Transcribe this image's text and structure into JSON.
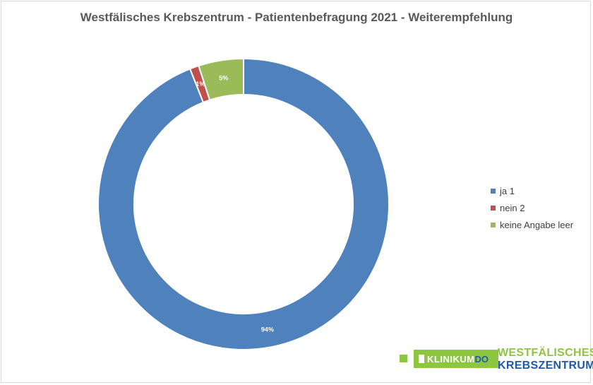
{
  "chart_data": {
    "type": "pie",
    "title": "Westfälisches Krebszentrum - Patientenbefragung 2021 - Weiterempfehlung",
    "style": "donut",
    "legend_position": "right",
    "series": [
      {
        "name": "ja 1",
        "value": 94,
        "label": "94%",
        "color": "#4f81bd"
      },
      {
        "name": "nein 2",
        "value": 1,
        "label": "1%",
        "color": "#c0504d"
      },
      {
        "name": "keine Angabe leer",
        "value": 5,
        "label": "5%",
        "color": "#9bbb59"
      }
    ]
  },
  "logo": {
    "klinikum": "KLINIKUM",
    "do": "DO",
    "line1": "WESTFÄLISCHES",
    "line2": "KREBSZENTRUM"
  }
}
